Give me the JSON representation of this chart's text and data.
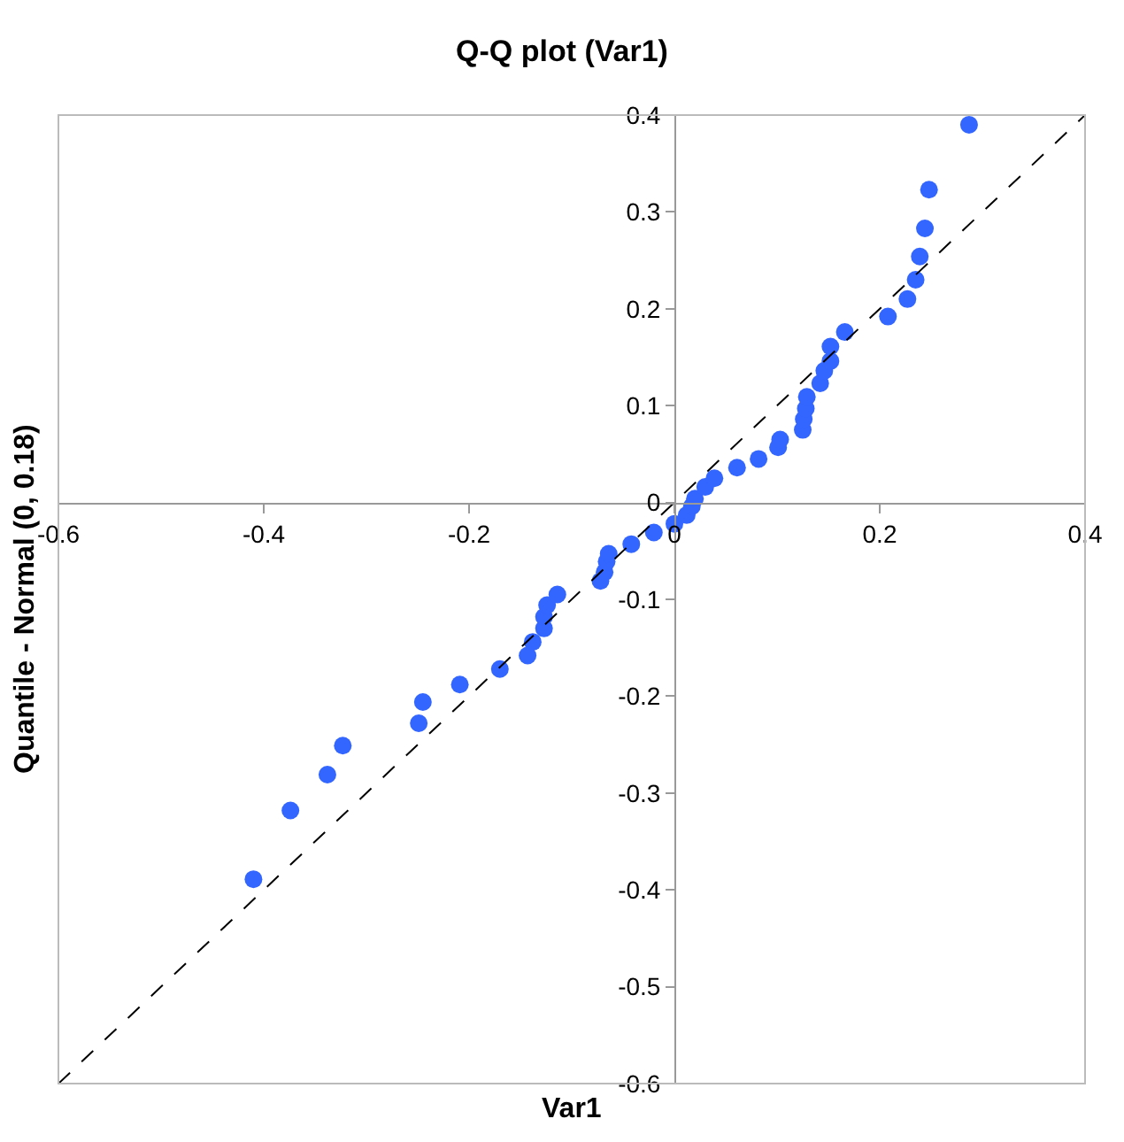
{
  "chart_data": {
    "type": "scatter",
    "title": "Q-Q plot (Var1)",
    "xlabel": "Var1",
    "ylabel": "Quantile - Normal (0, 0.18)",
    "xlim": [
      -0.6,
      0.4
    ],
    "ylim": [
      -0.6,
      0.4
    ],
    "xticks": [
      -0.6,
      -0.4,
      -0.2,
      0,
      0.2,
      0.4
    ],
    "yticks": [
      -0.6,
      -0.5,
      -0.4,
      -0.3,
      -0.2,
      -0.1,
      0,
      0.1,
      0.2,
      0.3,
      0.4
    ],
    "marker": "circle",
    "series": [
      {
        "color": "#3366ff",
        "x": [
          -0.41,
          -0.374,
          -0.338,
          -0.323,
          -0.249,
          -0.245,
          -0.209,
          -0.17,
          -0.143,
          -0.138,
          -0.127,
          -0.127,
          -0.124,
          -0.114,
          -0.072,
          -0.068,
          -0.066,
          -0.064,
          -0.042,
          -0.02,
          0.0,
          0.012,
          0.017,
          0.02,
          0.03,
          0.039,
          0.061,
          0.082,
          0.101,
          0.103,
          0.125,
          0.126,
          0.128,
          0.129,
          0.142,
          0.146,
          0.152,
          0.152,
          0.166,
          0.208,
          0.227,
          0.235,
          0.239,
          0.244,
          0.248,
          0.287
        ],
        "values": [
          -0.389,
          -0.318,
          -0.281,
          -0.251,
          -0.228,
          -0.206,
          -0.188,
          -0.172,
          -0.158,
          -0.144,
          -0.13,
          -0.118,
          -0.106,
          -0.095,
          -0.081,
          -0.072,
          -0.061,
          -0.053,
          -0.043,
          -0.031,
          -0.022,
          -0.013,
          -0.004,
          0.004,
          0.016,
          0.025,
          0.036,
          0.045,
          0.057,
          0.065,
          0.075,
          0.086,
          0.097,
          0.109,
          0.123,
          0.136,
          0.146,
          0.161,
          0.176,
          0.192,
          0.21,
          0.23,
          0.254,
          0.283,
          0.323,
          0.39
        ]
      },
      {
        "type": "line",
        "color": "#000000",
        "line_style": "dashed",
        "marker": "none",
        "x": [
          -0.6,
          0.4
        ],
        "values": [
          -0.6,
          0.4
        ]
      }
    ]
  }
}
